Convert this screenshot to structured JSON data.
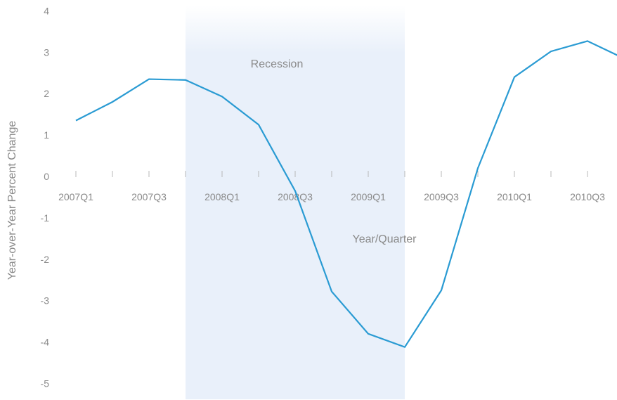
{
  "chart_data": {
    "type": "line",
    "title": "",
    "xlabel": "Year/Quarter",
    "ylabel": "Year-over-Year Percent Change",
    "categories": [
      "2007Q1",
      "2007Q2",
      "2007Q3",
      "2007Q4",
      "2008Q1",
      "2008Q2",
      "2008Q3",
      "2008Q4",
      "2009Q1",
      "2009Q2",
      "2009Q3",
      "2009Q4",
      "2010Q1",
      "2010Q2",
      "2010Q3",
      "2010Q4"
    ],
    "tick_labels": [
      "2007Q1",
      "2007Q3",
      "2008Q1",
      "2008Q3",
      "2009Q1",
      "2009Q3",
      "2010Q1",
      "2010Q3"
    ],
    "series": [
      {
        "values": [
          1.35,
          1.8,
          2.35,
          2.33,
          1.93,
          1.25,
          -0.35,
          -2.78,
          -3.8,
          -4.12,
          -2.75,
          0.2,
          2.4,
          3.02,
          3.27,
          2.85
        ]
      }
    ],
    "ylim": [
      -5,
      4
    ],
    "yticks": [
      4,
      3,
      2,
      1,
      0,
      -1,
      -2,
      -3,
      -4,
      -5
    ],
    "shaded_region": {
      "label": "Recession",
      "from": "2007Q4",
      "to": "2009Q2"
    },
    "grid": false,
    "line_color": "#2a9bd3",
    "shade_color": "#e9f0fa"
  }
}
